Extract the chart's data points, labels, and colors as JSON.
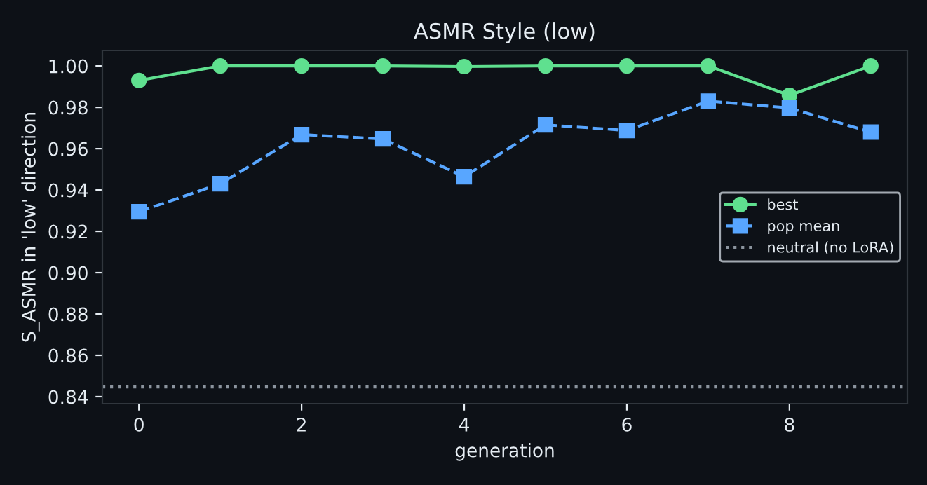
{
  "chart_data": {
    "type": "line",
    "title": "ASMR Style (low)",
    "xlabel": "generation",
    "ylabel": "S_ASMR in 'low' direction",
    "x": [
      0,
      1,
      2,
      3,
      4,
      5,
      6,
      7,
      8,
      9
    ],
    "series": [
      {
        "name": "best",
        "color": "#5fe08f",
        "marker": "circle",
        "line_style": "solid",
        "values": [
          0.993,
          1.0,
          1.0,
          1.0,
          0.9997,
          1.0,
          1.0,
          1.0,
          0.9858,
          1.0
        ]
      },
      {
        "name": "pop mean",
        "color": "#58a6ff",
        "marker": "square",
        "line_style": "dashed",
        "values": [
          0.9295,
          0.943,
          0.9668,
          0.9647,
          0.9464,
          0.9715,
          0.9688,
          0.983,
          0.9797,
          0.968
        ]
      }
    ],
    "ref_lines": [
      {
        "axis": "y",
        "value": 0.8447,
        "label": "neutral (no LoRA)",
        "color": "#8b949e",
        "line_style": "dotted"
      }
    ],
    "xlim": [
      -0.45,
      9.45
    ],
    "ylim": [
      0.8366,
      1.0075
    ],
    "xticks": [
      0,
      2,
      4,
      6,
      8
    ],
    "yticks": [
      {
        "value": 0.84,
        "label": "0.84"
      },
      {
        "value": 0.86,
        "label": "0.86"
      },
      {
        "value": 0.88,
        "label": "0.88"
      },
      {
        "value": 0.9,
        "label": "0.90"
      },
      {
        "value": 0.92,
        "label": "0.92"
      },
      {
        "value": 0.94,
        "label": "0.94"
      },
      {
        "value": 0.96,
        "label": "0.96"
      },
      {
        "value": 0.98,
        "label": "0.98"
      },
      {
        "value": 1.0,
        "label": "1.00"
      }
    ],
    "grid": false,
    "legend": "center right"
  }
}
